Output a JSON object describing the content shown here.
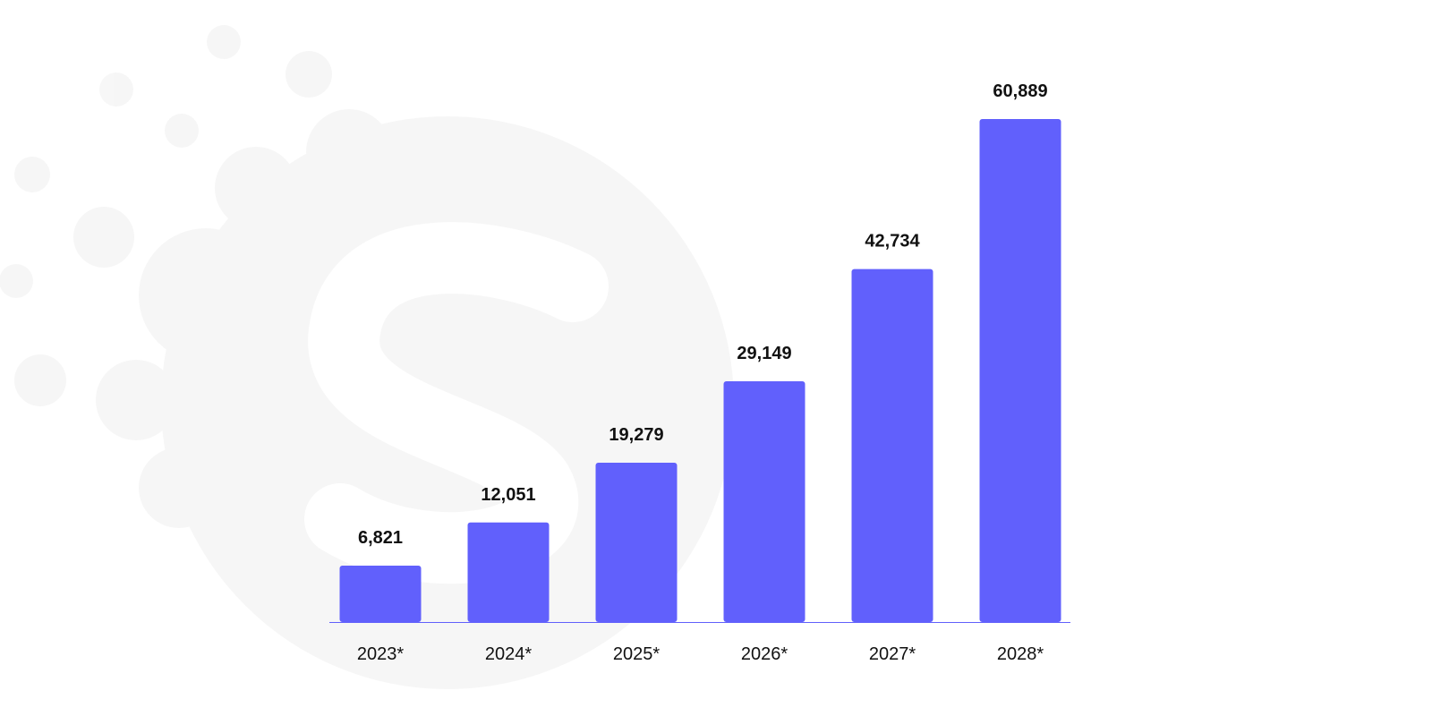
{
  "chart_data": {
    "type": "bar",
    "categories": [
      "2023*",
      "2024*",
      "2025*",
      "2026*",
      "2027*",
      "2028*"
    ],
    "values": [
      6821,
      12051,
      19279,
      29149,
      42734,
      60889
    ],
    "value_labels": [
      "6,821",
      "12,051",
      "19,279",
      "29,149",
      "42,734",
      "60,889"
    ],
    "title": "",
    "xlabel": "",
    "ylabel": "",
    "ylim": [
      0,
      60889
    ],
    "grid": false,
    "legend": "none",
    "colors": {
      "bar": "#6160fc",
      "axis": "#6160fc",
      "text": "#111111",
      "watermark": "#f2f2f2"
    }
  },
  "watermark": {
    "icon": "statista-logo-icon"
  }
}
